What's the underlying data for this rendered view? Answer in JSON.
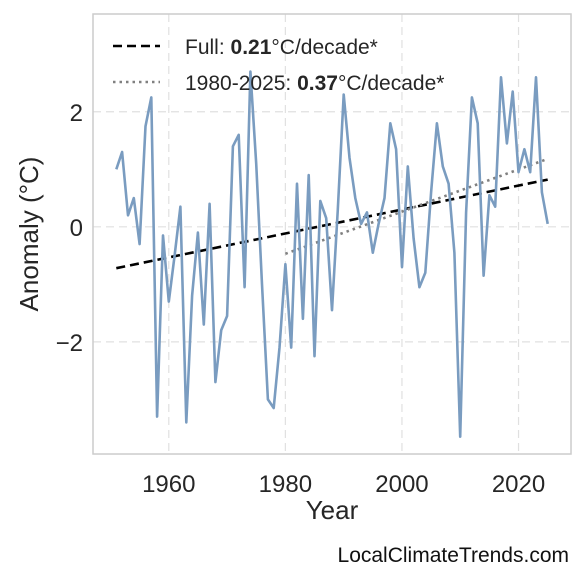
{
  "chart_data": {
    "type": "line",
    "xlabel": "Year",
    "ylabel": "Anomaly (°C)",
    "xlim": [
      1947,
      2029
    ],
    "ylim": [
      -3.95,
      3.7
    ],
    "xticks": [
      1960,
      1980,
      2000,
      2020
    ],
    "yticks": [
      -2,
      0,
      2
    ],
    "ytick_labels": [
      "−2",
      "0",
      "2"
    ],
    "grid": true,
    "legend_position": "top-left",
    "series": [
      {
        "kind": "observed",
        "color": "#7a9cc0",
        "x": [
          1951,
          1952,
          1953,
          1954,
          1955,
          1956,
          1957,
          1958,
          1959,
          1960,
          1961,
          1962,
          1963,
          1964,
          1965,
          1966,
          1967,
          1968,
          1969,
          1970,
          1971,
          1972,
          1973,
          1974,
          1975,
          1976,
          1977,
          1978,
          1979,
          1980,
          1981,
          1982,
          1983,
          1984,
          1985,
          1986,
          1987,
          1988,
          1989,
          1990,
          1991,
          1992,
          1993,
          1994,
          1995,
          1996,
          1997,
          1998,
          1999,
          2000,
          2001,
          2002,
          2003,
          2004,
          2005,
          2006,
          2007,
          2008,
          2009,
          2010,
          2011,
          2012,
          2013,
          2014,
          2015,
          2016,
          2017,
          2018,
          2019,
          2020,
          2021,
          2022,
          2023,
          2024,
          2025
        ],
        "values": [
          1.0,
          1.3,
          0.2,
          0.5,
          -0.3,
          1.75,
          2.25,
          -3.3,
          -0.15,
          -1.3,
          -0.5,
          0.35,
          -3.4,
          -1.2,
          -0.1,
          -1.7,
          0.4,
          -2.7,
          -1.8,
          -1.55,
          1.4,
          1.6,
          -1.05,
          2.7,
          1.1,
          -1.0,
          -3.0,
          -3.15,
          -2.1,
          -0.65,
          -2.1,
          0.75,
          -1.6,
          0.9,
          -2.25,
          0.45,
          0.15,
          -1.45,
          0.3,
          2.3,
          1.2,
          0.5,
          0.05,
          0.25,
          -0.45,
          0.05,
          0.5,
          1.8,
          1.35,
          -0.7,
          1.05,
          -0.2,
          -1.05,
          -0.8,
          0.6,
          1.8,
          1.05,
          0.75,
          -0.45,
          -3.65,
          0.25,
          2.25,
          1.8,
          -0.85,
          0.55,
          0.35,
          2.6,
          1.45,
          2.35,
          0.95,
          1.35,
          0.95,
          2.6,
          0.6,
          0.05
        ]
      },
      {
        "kind": "trend",
        "name": "Full: 0.21°C/decade*",
        "color": "#000000",
        "style": "dashed",
        "x": [
          1951,
          2025
        ],
        "values": [
          -0.72,
          0.82
        ]
      },
      {
        "kind": "trend",
        "name": "1980-2025: 0.37°C/decade*",
        "color": "#808080",
        "style": "dotted",
        "x": [
          1980,
          2025
        ],
        "values": [
          -0.47,
          1.18
        ]
      }
    ]
  },
  "legend": [
    {
      "prefix": "Full: ",
      "value": "0.21",
      "suffix": "°C/decade*"
    },
    {
      "prefix": "1980-2025: ",
      "value": "0.37",
      "suffix": "°C/decade*"
    }
  ],
  "credit": "LocalClimateTrends.com"
}
